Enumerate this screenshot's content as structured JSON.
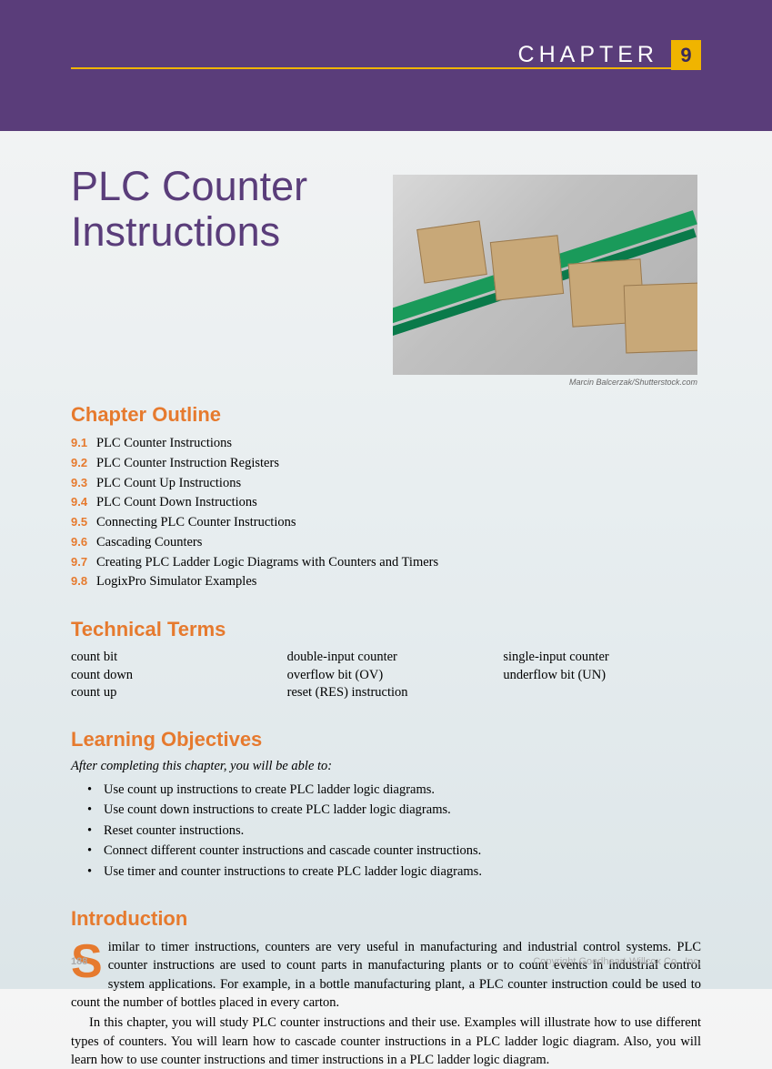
{
  "header": {
    "chapter_word": "CHAPTER",
    "chapter_number": "9",
    "band_color": "#5a3d7a",
    "rule_color": "#f0b400",
    "number_box_bg": "#f0b400",
    "number_box_fg": "#3a2a5a"
  },
  "title": "PLC Counter Instructions",
  "accent_color": "#e67a2e",
  "image": {
    "credit": "Marcin Balcerzak/Shutterstock.com"
  },
  "outline": {
    "heading": "Chapter Outline",
    "items": [
      {
        "num": "9.1",
        "text": "PLC Counter Instructions"
      },
      {
        "num": "9.2",
        "text": "PLC Counter Instruction Registers"
      },
      {
        "num": "9.3",
        "text": "PLC Count Up Instructions"
      },
      {
        "num": "9.4",
        "text": "PLC Count Down Instructions"
      },
      {
        "num": "9.5",
        "text": "Connecting PLC Counter Instructions"
      },
      {
        "num": "9.6",
        "text": "Cascading Counters"
      },
      {
        "num": "9.7",
        "text": "Creating PLC Ladder Logic Diagrams with Counters and Timers"
      },
      {
        "num": "9.8",
        "text": "LogixPro Simulator Examples"
      }
    ]
  },
  "terms": {
    "heading": "Technical Terms",
    "col1": [
      "count bit",
      "count down",
      "count up"
    ],
    "col2": [
      "double-input counter",
      "overflow bit (OV)",
      "reset (RES) instruction"
    ],
    "col3": [
      "single-input counter",
      "underflow bit (UN)"
    ]
  },
  "objectives": {
    "heading": "Learning Objectives",
    "intro": "After completing this chapter, you will be able to:",
    "items": [
      "Use count up instructions to create PLC ladder logic diagrams.",
      "Use count down instructions to create PLC ladder logic diagrams.",
      "Reset counter instructions.",
      "Connect different counter instructions and cascade counter instructions.",
      "Use timer and counter instructions to create PLC ladder logic diagrams."
    ]
  },
  "introduction": {
    "heading": "Introduction",
    "dropcap": "S",
    "p1_rest": "imilar to timer instructions, counters are very useful in manufacturing and industrial control systems. PLC counter instructions are used to count parts in manufacturing plants or to count events in industrial control system applications. For example, in a bottle manufacturing plant, a PLC counter instruction could be used to count the number of bottles placed in every carton.",
    "p2": "In this chapter, you will study PLC counter instructions and their use. Examples will illustrate how to use different types of counters. You will learn how to cascade counter instructions in a PLC ladder logic diagram. Also, you will learn how to use counter instructions and timer instructions in a PLC ladder logic diagram."
  },
  "footer": {
    "page_number": "188",
    "copyright": "Copyright Goodheart-Willcox Co., Inc."
  }
}
